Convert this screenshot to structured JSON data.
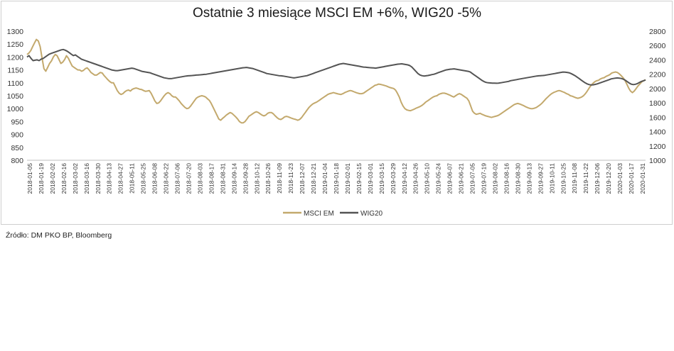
{
  "chart_data": {
    "type": "line",
    "title": "Ostatnie 3 miesiące MSCI EM +6%, WIG20 -5%",
    "left_axis": {
      "min": 800,
      "max": 1300,
      "step": 50,
      "ticks": [
        "1300",
        "1250",
        "1200",
        "1150",
        "1100",
        "1050",
        "1000",
        "950",
        "900",
        "850",
        "800"
      ]
    },
    "right_axis": {
      "min": 1000,
      "max": 2800,
      "step": 200,
      "ticks": [
        "2800",
        "2600",
        "2400",
        "2200",
        "2000",
        "1800",
        "1600",
        "1400",
        "1200",
        "1000"
      ]
    },
    "x_labels": [
      "2018-01-05",
      "2018-01-19",
      "2018-02-02",
      "2018-02-16",
      "2018-03-02",
      "2018-03-16",
      "2018-03-30",
      "2018-04-13",
      "2018-04-27",
      "2018-05-11",
      "2018-05-25",
      "2018-06-08",
      "2018-06-22",
      "2018-07-06",
      "2018-07-20",
      "2018-08-03",
      "2018-08-17",
      "2018-08-31",
      "2018-09-14",
      "2018-09-28",
      "2018-10-12",
      "2018-10-26",
      "2018-11-09",
      "2018-11-23",
      "2018-12-07",
      "2018-12-21",
      "2019-01-04",
      "2019-01-18",
      "2019-02-01",
      "2019-02-15",
      "2019-03-01",
      "2019-03-15",
      "2019-03-29",
      "2019-04-12",
      "2019-04-26",
      "2019-05-10",
      "2019-05-24",
      "2019-06-07",
      "2019-06-21",
      "2019-07-05",
      "2019-07-19",
      "2019-08-02",
      "2019-08-16",
      "2019-08-30",
      "2019-09-13",
      "2019-09-27",
      "2019-10-11",
      "2019-10-25",
      "2019-11-08",
      "2019-11-22",
      "2019-12-06",
      "2019-12-20",
      "2020-01-03",
      "2020-01-17",
      "2020-01-31"
    ],
    "series": [
      {
        "name": "MSCI EM",
        "axis": "left",
        "color": "#c3a96d",
        "values": [
          1210,
          1215,
          1225,
          1240,
          1255,
          1268,
          1262,
          1240,
          1195,
          1155,
          1145,
          1160,
          1175,
          1185,
          1200,
          1210,
          1205,
          1190,
          1175,
          1180,
          1190,
          1205,
          1195,
          1180,
          1165,
          1160,
          1155,
          1150,
          1150,
          1145,
          1148,
          1155,
          1158,
          1150,
          1140,
          1135,
          1130,
          1130,
          1135,
          1140,
          1138,
          1128,
          1120,
          1112,
          1105,
          1100,
          1100,
          1085,
          1070,
          1060,
          1055,
          1058,
          1065,
          1070,
          1072,
          1068,
          1075,
          1078,
          1080,
          1078,
          1075,
          1074,
          1070,
          1067,
          1068,
          1070,
          1060,
          1045,
          1030,
          1020,
          1022,
          1030,
          1040,
          1050,
          1058,
          1062,
          1058,
          1050,
          1045,
          1045,
          1038,
          1030,
          1020,
          1012,
          1005,
          1000,
          1002,
          1010,
          1020,
          1030,
          1040,
          1045,
          1048,
          1050,
          1048,
          1045,
          1038,
          1032,
          1020,
          1005,
          990,
          975,
          960,
          955,
          962,
          968,
          975,
          980,
          985,
          982,
          975,
          968,
          960,
          950,
          945,
          945,
          950,
          960,
          970,
          975,
          980,
          985,
          988,
          985,
          980,
          975,
          972,
          975,
          982,
          985,
          985,
          980,
          972,
          965,
          960,
          958,
          962,
          968,
          970,
          968,
          965,
          962,
          960,
          958,
          955,
          958,
          965,
          975,
          985,
          995,
          1005,
          1012,
          1018,
          1022,
          1025,
          1030,
          1035,
          1040,
          1045,
          1050,
          1055,
          1058,
          1060,
          1062,
          1060,
          1058,
          1056,
          1055,
          1058,
          1062,
          1065,
          1068,
          1070,
          1068,
          1065,
          1062,
          1060,
          1058,
          1058,
          1060,
          1065,
          1070,
          1075,
          1080,
          1085,
          1090,
          1092,
          1095,
          1094,
          1092,
          1090,
          1088,
          1085,
          1082,
          1080,
          1078,
          1072,
          1060,
          1045,
          1025,
          1010,
          1000,
          995,
          993,
          992,
          995,
          998,
          1002,
          1005,
          1008,
          1012,
          1018,
          1025,
          1030,
          1035,
          1040,
          1045,
          1048,
          1050,
          1055,
          1058,
          1060,
          1060,
          1058,
          1055,
          1052,
          1048,
          1045,
          1050,
          1055,
          1058,
          1055,
          1050,
          1045,
          1040,
          1030,
          1010,
          990,
          982,
          978,
          980,
          982,
          978,
          975,
          972,
          970,
          968,
          966,
          968,
          970,
          972,
          975,
          980,
          985,
          990,
          995,
          1000,
          1005,
          1010,
          1015,
          1018,
          1020,
          1018,
          1015,
          1012,
          1008,
          1005,
          1002,
          1000,
          1000,
          1002,
          1005,
          1010,
          1015,
          1022,
          1030,
          1038,
          1045,
          1052,
          1058,
          1062,
          1065,
          1068,
          1070,
          1068,
          1065,
          1062,
          1058,
          1055,
          1050,
          1048,
          1045,
          1042,
          1040,
          1042,
          1045,
          1050,
          1058,
          1068,
          1080,
          1090,
          1098,
          1104,
          1108,
          1110,
          1115,
          1118,
          1120,
          1125,
          1128,
          1132,
          1138,
          1140,
          1142,
          1140,
          1135,
          1128,
          1120,
          1110,
          1095,
          1080,
          1068,
          1062,
          1068,
          1078,
          1088,
          1096,
          1104,
          1108,
          1112
        ]
      },
      {
        "name": "WIG20",
        "axis": "right",
        "color": "#545454",
        "values": [
          2440,
          2460,
          2420,
          2390,
          2395,
          2400,
          2390,
          2410,
          2420,
          2440,
          2460,
          2480,
          2490,
          2500,
          2510,
          2520,
          2530,
          2540,
          2545,
          2535,
          2520,
          2500,
          2480,
          2460,
          2470,
          2450,
          2430,
          2410,
          2400,
          2390,
          2380,
          2370,
          2360,
          2350,
          2340,
          2330,
          2320,
          2310,
          2300,
          2290,
          2280,
          2270,
          2260,
          2255,
          2250,
          2250,
          2255,
          2260,
          2265,
          2270,
          2275,
          2280,
          2285,
          2280,
          2270,
          2260,
          2250,
          2240,
          2235,
          2230,
          2225,
          2220,
          2210,
          2200,
          2190,
          2180,
          2170,
          2160,
          2150,
          2145,
          2140,
          2138,
          2140,
          2145,
          2150,
          2155,
          2160,
          2165,
          2170,
          2175,
          2178,
          2180,
          2182,
          2185,
          2188,
          2190,
          2192,
          2195,
          2198,
          2200,
          2205,
          2210,
          2215,
          2220,
          2225,
          2230,
          2235,
          2240,
          2245,
          2250,
          2255,
          2260,
          2265,
          2270,
          2275,
          2280,
          2285,
          2290,
          2292,
          2295,
          2290,
          2285,
          2280,
          2270,
          2260,
          2250,
          2240,
          2230,
          2220,
          2210,
          2205,
          2200,
          2195,
          2190,
          2185,
          2180,
          2178,
          2175,
          2170,
          2165,
          2160,
          2155,
          2150,
          2150,
          2155,
          2160,
          2165,
          2170,
          2175,
          2180,
          2190,
          2200,
          2210,
          2220,
          2230,
          2240,
          2250,
          2260,
          2270,
          2280,
          2290,
          2300,
          2310,
          2320,
          2330,
          2340,
          2345,
          2350,
          2345,
          2340,
          2335,
          2330,
          2325,
          2320,
          2315,
          2310,
          2305,
          2300,
          2298,
          2295,
          2292,
          2290,
          2288,
          2285,
          2290,
          2295,
          2300,
          2305,
          2310,
          2315,
          2320,
          2325,
          2330,
          2335,
          2340,
          2342,
          2345,
          2340,
          2335,
          2330,
          2320,
          2300,
          2270,
          2240,
          2210,
          2190,
          2180,
          2175,
          2178,
          2182,
          2188,
          2195,
          2200,
          2210,
          2220,
          2230,
          2240,
          2250,
          2260,
          2265,
          2270,
          2272,
          2275,
          2270,
          2265,
          2260,
          2255,
          2250,
          2245,
          2240,
          2230,
          2210,
          2190,
          2170,
          2150,
          2130,
          2110,
          2095,
          2085,
          2080,
          2078,
          2076,
          2075,
          2074,
          2076,
          2080,
          2085,
          2090,
          2095,
          2100,
          2110,
          2115,
          2120,
          2125,
          2130,
          2135,
          2140,
          2145,
          2150,
          2155,
          2160,
          2165,
          2170,
          2175,
          2178,
          2180,
          2182,
          2185,
          2190,
          2195,
          2200,
          2205,
          2210,
          2215,
          2220,
          2225,
          2230,
          2228,
          2225,
          2220,
          2210,
          2195,
          2180,
          2160,
          2140,
          2120,
          2100,
          2080,
          2065,
          2055,
          2050,
          2052,
          2058,
          2065,
          2075,
          2085,
          2095,
          2105,
          2115,
          2125,
          2135,
          2140,
          2145,
          2148,
          2145,
          2140,
          2130,
          2115,
          2095,
          2075,
          2060,
          2055,
          2060,
          2070,
          2085,
          2100,
          2110,
          2120
        ]
      }
    ],
    "legend": [
      "MSCI EM",
      "WIG20"
    ],
    "legend_position": "bottom"
  },
  "source_text": "Źródło: DM PKO BP, Bloomberg"
}
